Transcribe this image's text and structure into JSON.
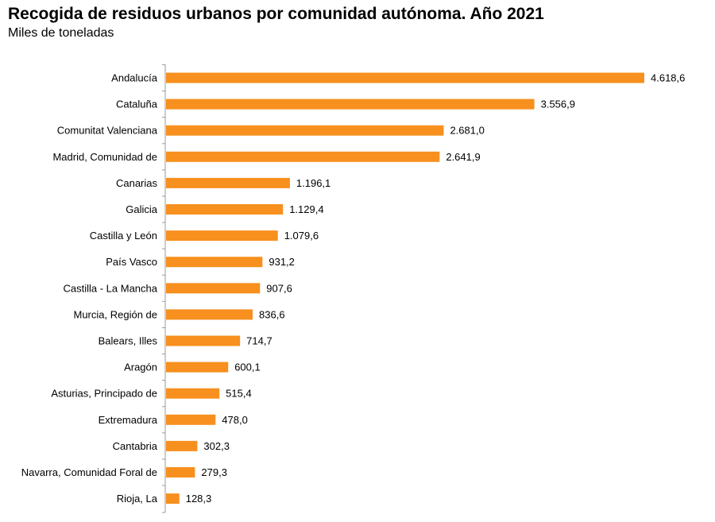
{
  "chart_data": {
    "type": "bar",
    "orientation": "horizontal",
    "title": "Recogida de residuos urbanos por comunidad autónoma. Año 2021",
    "subtitle": "Miles de toneladas",
    "xlabel": "",
    "ylabel": "",
    "grid": false,
    "legend": "none",
    "bar_color": "#F7901E",
    "categories": [
      "Andalucía",
      "Cataluña",
      "Comunitat Valenciana",
      "Madrid, Comunidad de",
      "Canarias",
      "Galicia",
      "Castilla y León",
      "País Vasco",
      "Castilla - La Mancha",
      "Murcia, Región de",
      "Balears, Illes",
      "Aragón",
      "Asturias, Principado de",
      "Extremadura",
      "Cantabria",
      "Navarra, Comunidad Foral de",
      "Rioja, La"
    ],
    "values": [
      4618.6,
      3556.9,
      2681.0,
      2641.9,
      1196.1,
      1129.4,
      1079.6,
      931.2,
      907.6,
      836.6,
      714.7,
      600.1,
      515.4,
      478.0,
      302.3,
      279.3,
      128.3
    ],
    "value_labels": [
      "4.618,6",
      "3.556,9",
      "2.681,0",
      "2.641,9",
      "1.196,1",
      "1.129,4",
      "1.079,6",
      "931,2",
      "907,6",
      "836,6",
      "714,7",
      "600,1",
      "515,4",
      "478,0",
      "302,3",
      "279,3",
      "128,3"
    ]
  }
}
